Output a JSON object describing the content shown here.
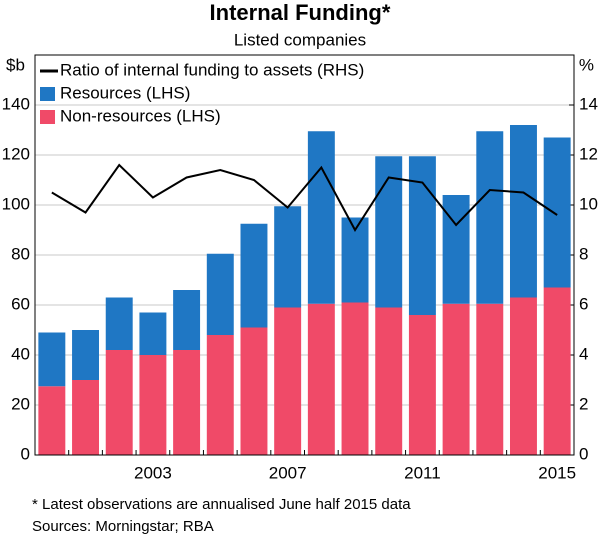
{
  "chart_data": {
    "type": "bar",
    "title": "Internal Funding*",
    "subtitle": "Listed companies",
    "y_unit": "$b",
    "y2_unit": "%",
    "categories": [
      null,
      null,
      null,
      "2003",
      null,
      null,
      null,
      "2007",
      null,
      null,
      null,
      "2011",
      null,
      null,
      null,
      "2015"
    ],
    "series": [
      {
        "name": "Ratio of internal funding to assets (RHS)",
        "color": "#000000",
        "axis": "y2",
        "values": [
          10.5,
          9.7,
          11.6,
          10.3,
          11.1,
          11.4,
          11.0,
          9.9,
          11.5,
          9.0,
          11.1,
          10.9,
          9.2,
          10.6,
          10.5,
          9.6
        ]
      },
      {
        "name": "Resources (LHS)",
        "color": "#1f77c4",
        "values": [
          21.5,
          20,
          21,
          17,
          24,
          32.5,
          41.5,
          40.5,
          69,
          34,
          60.5,
          63.5,
          43.5,
          69,
          69,
          60
        ]
      },
      {
        "name": "Non-resources (LHS)",
        "color": "#f04a68",
        "values": [
          27.5,
          30,
          42,
          40,
          42,
          48,
          51,
          59,
          60.5,
          61,
          59,
          56,
          60.5,
          60.5,
          63,
          67
        ]
      }
    ],
    "ylim": [
      0,
      160
    ],
    "yticks": [
      0,
      20,
      40,
      60,
      80,
      100,
      120,
      140
    ],
    "y2lim": [
      0,
      16
    ],
    "y2ticks": [
      0,
      2,
      4,
      6,
      8,
      10,
      12,
      14
    ],
    "grid": true,
    "legend": "top-left",
    "footnote": "*      Latest observations are annualised June half 2015 data",
    "sources": "Sources:   Morningstar; RBA"
  }
}
